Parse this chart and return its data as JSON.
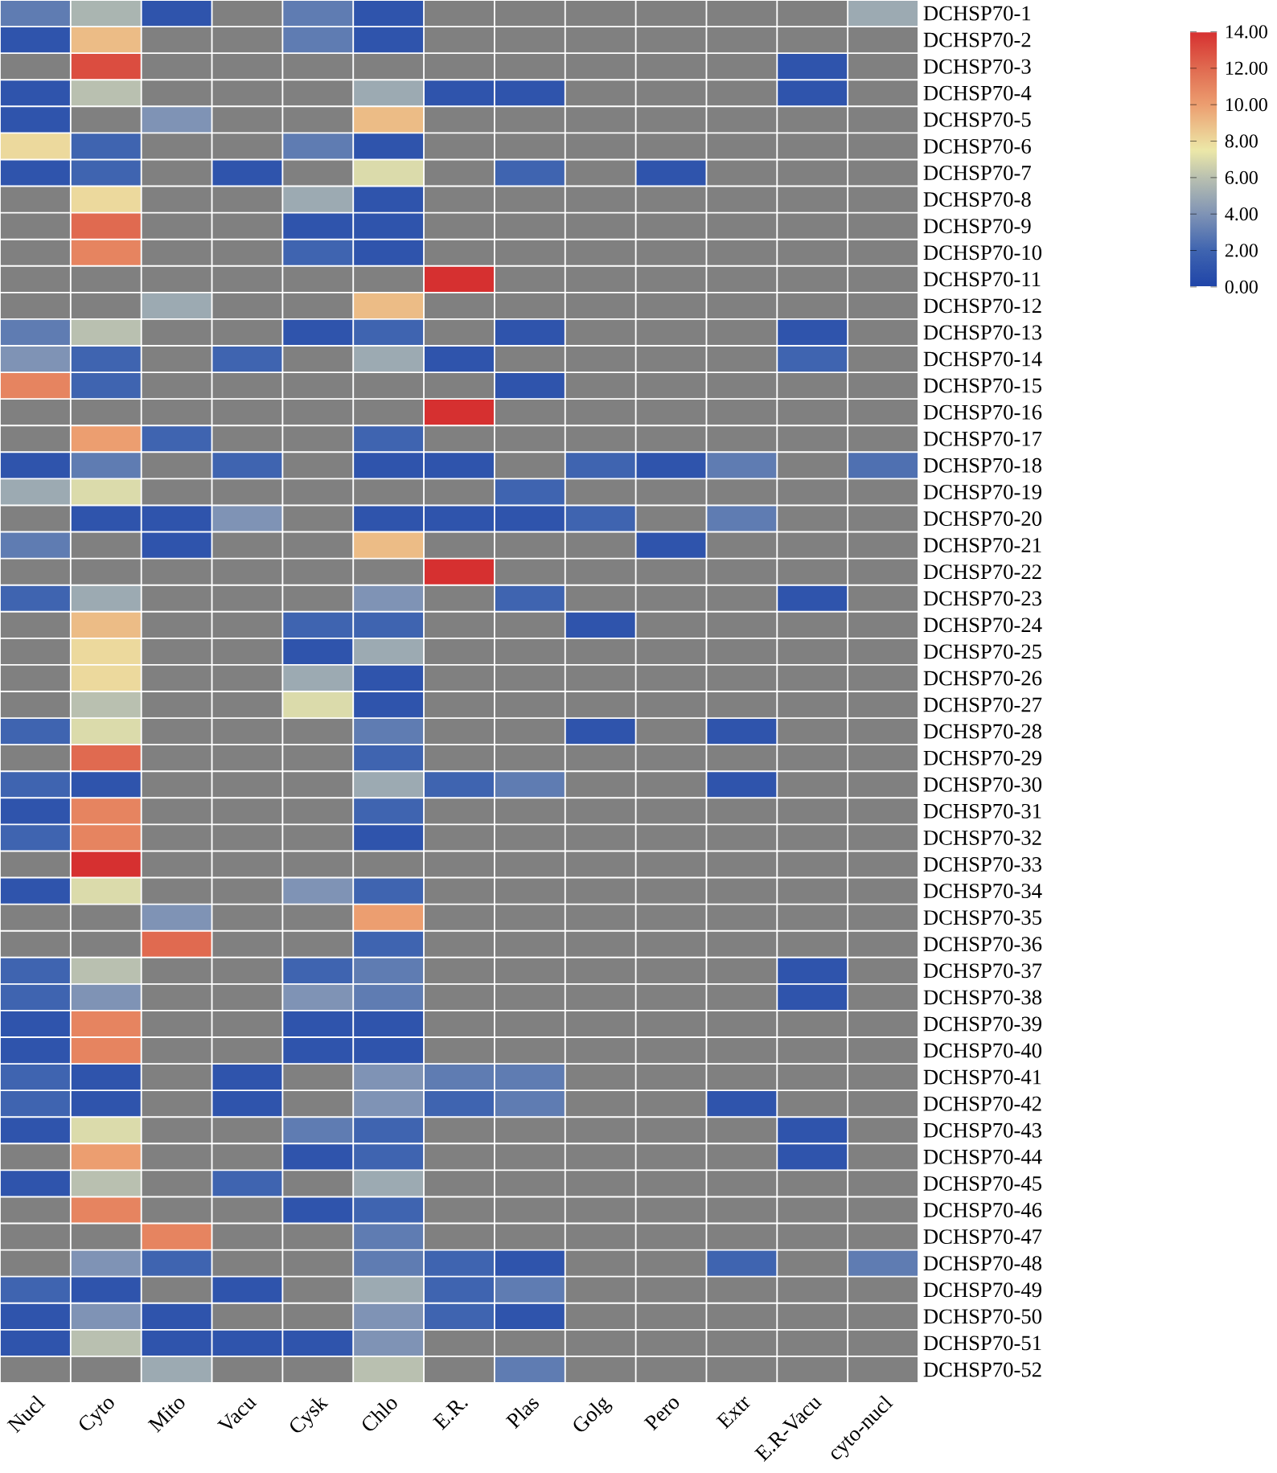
{
  "chart_data": {
    "type": "heatmap",
    "categories": [
      "Nucl",
      "Cyto",
      "Mito",
      "Vacu",
      "Cysk",
      "Chlo",
      "E.R.",
      "Plas",
      "Golg",
      "Pero",
      "Extr",
      "E.R-Vacu",
      "cyto-nucl"
    ],
    "y_categories": [
      "DCHSP70-1",
      "DCHSP70-2",
      "DCHSP70-3",
      "DCHSP70-4",
      "DCHSP70-5",
      "DCHSP70-6",
      "DCHSP70-7",
      "DCHSP70-8",
      "DCHSP70-9",
      "DCHSP70-10",
      "DCHSP70-11",
      "DCHSP70-12",
      "DCHSP70-13",
      "DCHSP70-14",
      "DCHSP70-15",
      "DCHSP70-16",
      "DCHSP70-17",
      "DCHSP70-18",
      "DCHSP70-19",
      "DCHSP70-20",
      "DCHSP70-21",
      "DCHSP70-22",
      "DCHSP70-23",
      "DCHSP70-24",
      "DCHSP70-25",
      "DCHSP70-26",
      "DCHSP70-27",
      "DCHSP70-28",
      "DCHSP70-29",
      "DCHSP70-30",
      "DCHSP70-31",
      "DCHSP70-32",
      "DCHSP70-33",
      "DCHSP70-34",
      "DCHSP70-35",
      "DCHSP70-36",
      "DCHSP70-37",
      "DCHSP70-38",
      "DCHSP70-39",
      "DCHSP70-40",
      "DCHSP70-41",
      "DCHSP70-42",
      "DCHSP70-43",
      "DCHSP70-44",
      "DCHSP70-45",
      "DCHSP70-46",
      "DCHSP70-47",
      "DCHSP70-48",
      "DCHSP70-49",
      "DCHSP70-50",
      "DCHSP70-51",
      "DCHSP70-52"
    ],
    "cells": [
      [
        3,
        5.5,
        1,
        null,
        3,
        1,
        null,
        null,
        null,
        null,
        null,
        null,
        5
      ],
      [
        1,
        9,
        null,
        null,
        3,
        1,
        null,
        null,
        null,
        null,
        null,
        null,
        null
      ],
      [
        null,
        13,
        null,
        null,
        null,
        null,
        null,
        null,
        null,
        null,
        null,
        1,
        null
      ],
      [
        1,
        6,
        null,
        null,
        null,
        5,
        1,
        1,
        null,
        null,
        null,
        1,
        null
      ],
      [
        1,
        null,
        4,
        null,
        null,
        9,
        null,
        null,
        null,
        null,
        null,
        null,
        null
      ],
      [
        8,
        2,
        null,
        null,
        3,
        1,
        null,
        null,
        null,
        null,
        null,
        null,
        null
      ],
      [
        1,
        2,
        null,
        1,
        null,
        7,
        null,
        2,
        null,
        1,
        null,
        null,
        null
      ],
      [
        null,
        8,
        null,
        null,
        5,
        1,
        null,
        null,
        null,
        null,
        null,
        null,
        null
      ],
      [
        null,
        12,
        null,
        null,
        1,
        1,
        null,
        null,
        null,
        null,
        null,
        null,
        null
      ],
      [
        null,
        11,
        null,
        null,
        2,
        1,
        null,
        null,
        null,
        null,
        null,
        null,
        null
      ],
      [
        null,
        null,
        null,
        null,
        null,
        null,
        14,
        null,
        null,
        null,
        null,
        null,
        null
      ],
      [
        null,
        null,
        5,
        null,
        null,
        9,
        null,
        null,
        null,
        null,
        null,
        null,
        null
      ],
      [
        3,
        6,
        null,
        null,
        1,
        2,
        null,
        1,
        null,
        null,
        null,
        1,
        null
      ],
      [
        4,
        2,
        null,
        2,
        null,
        5,
        1,
        null,
        null,
        null,
        null,
        2,
        null
      ],
      [
        11,
        2,
        null,
        null,
        null,
        null,
        null,
        1,
        null,
        null,
        null,
        null,
        null
      ],
      [
        null,
        null,
        null,
        null,
        null,
        null,
        14,
        null,
        null,
        null,
        null,
        null,
        null
      ],
      [
        null,
        10,
        2,
        null,
        null,
        2,
        null,
        null,
        null,
        null,
        null,
        null,
        null
      ],
      [
        1,
        3,
        null,
        2,
        null,
        1,
        1,
        null,
        2,
        1,
        3,
        null,
        2.5
      ],
      [
        5,
        7,
        null,
        null,
        null,
        null,
        null,
        2,
        null,
        null,
        null,
        null,
        null
      ],
      [
        null,
        1,
        1,
        4,
        null,
        1,
        1,
        1,
        2,
        null,
        3,
        null,
        null
      ],
      [
        3,
        null,
        1,
        null,
        null,
        9,
        null,
        null,
        null,
        1,
        null,
        null,
        null
      ],
      [
        null,
        null,
        null,
        null,
        null,
        null,
        14,
        null,
        null,
        null,
        null,
        null,
        null
      ],
      [
        2,
        5,
        null,
        null,
        null,
        4,
        null,
        2,
        null,
        null,
        null,
        1,
        null
      ],
      [
        null,
        9,
        null,
        null,
        2,
        2,
        null,
        null,
        1,
        null,
        null,
        null,
        null
      ],
      [
        null,
        8,
        null,
        null,
        1,
        5,
        null,
        null,
        null,
        null,
        null,
        null,
        null
      ],
      [
        null,
        8,
        null,
        null,
        5,
        1,
        null,
        null,
        null,
        null,
        null,
        null,
        null
      ],
      [
        null,
        6,
        null,
        null,
        7,
        1,
        null,
        null,
        null,
        null,
        null,
        null,
        null
      ],
      [
        2,
        7,
        null,
        null,
        null,
        3,
        null,
        null,
        1,
        null,
        1,
        null,
        null
      ],
      [
        null,
        12,
        null,
        null,
        null,
        2,
        null,
        null,
        null,
        null,
        null,
        null,
        null
      ],
      [
        2,
        1,
        null,
        null,
        null,
        5,
        2,
        3,
        null,
        null,
        1,
        null,
        null
      ],
      [
        1,
        11,
        null,
        null,
        null,
        2,
        null,
        null,
        null,
        null,
        null,
        null,
        null
      ],
      [
        2,
        11,
        null,
        null,
        null,
        1,
        null,
        null,
        null,
        null,
        null,
        null,
        null
      ],
      [
        null,
        14,
        null,
        null,
        null,
        null,
        null,
        null,
        null,
        null,
        null,
        null,
        null
      ],
      [
        1,
        7,
        null,
        null,
        4,
        2,
        null,
        null,
        null,
        null,
        null,
        null,
        null
      ],
      [
        null,
        null,
        4,
        null,
        null,
        10,
        null,
        null,
        null,
        null,
        null,
        null,
        null
      ],
      [
        null,
        null,
        12,
        null,
        null,
        2,
        null,
        null,
        null,
        null,
        null,
        null,
        null
      ],
      [
        2,
        6,
        null,
        null,
        2,
        3,
        null,
        null,
        null,
        null,
        null,
        1,
        null
      ],
      [
        2,
        4,
        null,
        null,
        4,
        3,
        null,
        null,
        null,
        null,
        null,
        1,
        null
      ],
      [
        1,
        11,
        null,
        null,
        1,
        1,
        null,
        null,
        null,
        null,
        null,
        null,
        null
      ],
      [
        1,
        11,
        null,
        null,
        1,
        1,
        null,
        null,
        null,
        null,
        null,
        null,
        null
      ],
      [
        2,
        1,
        null,
        1,
        null,
        4,
        3,
        3,
        null,
        null,
        null,
        null,
        null
      ],
      [
        2,
        1,
        null,
        1,
        null,
        4,
        2,
        3,
        null,
        null,
        1,
        null,
        null
      ],
      [
        1,
        7,
        null,
        null,
        3,
        2,
        null,
        null,
        null,
        null,
        null,
        1,
        null
      ],
      [
        null,
        10,
        null,
        null,
        1,
        2,
        null,
        null,
        null,
        null,
        null,
        1,
        null
      ],
      [
        1,
        6,
        null,
        2,
        null,
        5,
        null,
        null,
        null,
        null,
        null,
        null,
        null
      ],
      [
        null,
        11,
        null,
        null,
        1,
        2,
        null,
        null,
        null,
        null,
        null,
        null,
        null
      ],
      [
        null,
        null,
        11,
        null,
        null,
        3,
        null,
        null,
        null,
        null,
        null,
        null,
        null
      ],
      [
        null,
        4,
        2,
        null,
        null,
        3,
        2,
        1,
        null,
        null,
        2,
        null,
        3
      ],
      [
        2,
        1,
        null,
        1,
        null,
        5,
        2,
        3,
        null,
        null,
        null,
        null,
        null
      ],
      [
        1,
        4,
        1,
        null,
        null,
        4,
        2,
        1,
        null,
        null,
        null,
        null,
        null
      ],
      [
        1,
        6,
        1,
        1,
        1,
        4,
        null,
        null,
        null,
        null,
        null,
        null,
        null
      ],
      [
        null,
        null,
        5,
        null,
        null,
        6,
        null,
        3,
        null,
        null,
        null,
        null,
        null
      ]
    ],
    "clim": [
      0,
      14
    ],
    "cticks": [
      {
        "value": 0,
        "label": "0.00"
      },
      {
        "value": 2,
        "label": "2.00"
      },
      {
        "value": 4,
        "label": "4.00"
      },
      {
        "value": 6,
        "label": "6.00"
      },
      {
        "value": 8,
        "label": "8.00"
      },
      {
        "value": 10,
        "label": "10.00"
      },
      {
        "value": 12,
        "label": "12.00"
      },
      {
        "value": 14,
        "label": "14.00"
      }
    ]
  }
}
